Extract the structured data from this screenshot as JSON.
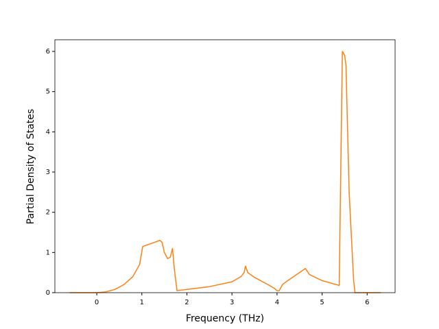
{
  "chart_data": {
    "type": "line",
    "x_label": "Frequency (THz)",
    "y_label": "Partial Density of States",
    "x": [
      -0.6,
      0,
      0.2,
      0.4,
      0.6,
      0.8,
      0.95,
      1.02,
      1.2,
      1.4,
      1.45,
      1.5,
      1.57,
      1.63,
      1.68,
      1.72,
      1.78,
      2.0,
      2.5,
      3.0,
      3.2,
      3.27,
      3.3,
      3.35,
      3.5,
      3.8,
      3.95,
      4.0,
      4.05,
      4.12,
      4.2,
      4.63,
      4.72,
      5.0,
      5.38,
      5.45,
      5.5,
      5.53,
      5.6,
      5.7,
      5.73,
      6.3
    ],
    "series": [
      {
        "color": "#ff7f0e",
        "values": [
          0,
          0,
          0.02,
          0.08,
          0.2,
          0.4,
          0.7,
          1.15,
          1.22,
          1.3,
          1.25,
          1.0,
          0.85,
          0.88,
          1.1,
          0.6,
          0.05,
          0.08,
          0.15,
          0.27,
          0.4,
          0.5,
          0.66,
          0.5,
          0.38,
          0.2,
          0.1,
          0.05,
          0.05,
          0.2,
          0.27,
          0.6,
          0.45,
          0.3,
          0.18,
          6.0,
          5.9,
          5.65,
          2.5,
          0.3,
          0,
          0
        ]
      }
    ],
    "xlim": [
      -0.93,
      6.62
    ],
    "xticks": [
      0,
      1,
      2,
      3,
      4,
      5,
      6
    ],
    "ylim": [
      0,
      6.29
    ],
    "yticks": [
      0,
      1,
      2,
      3,
      4,
      5,
      6
    ]
  }
}
